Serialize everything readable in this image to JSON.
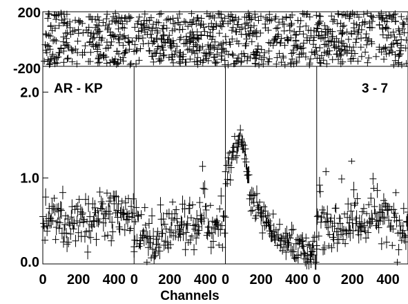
{
  "chart_data": {
    "type": "scatter",
    "marker": "plus",
    "color": "#000000",
    "xlabel": "Channels",
    "annotations": [
      "AR - KP",
      "3 - 7"
    ],
    "top_panel": {
      "y_ticks": [
        "200",
        "-200"
      ],
      "ylim": [
        -200,
        200
      ]
    },
    "main_panel": {
      "ylim": [
        0,
        2.3
      ],
      "y_ticks": [
        "2.0",
        "1.0",
        "0.0"
      ],
      "y_tick_values": [
        2.0,
        1.0,
        0.0
      ],
      "x_ticks": [
        "0",
        "200",
        "400",
        "0",
        "200",
        "400",
        "0",
        "200",
        "400",
        "0",
        "200",
        "400"
      ],
      "segments": [
        {
          "range": [
            0,
            512
          ],
          "profile": [
            [
              0,
              0.45
            ],
            [
              100,
              0.5
            ],
            [
              300,
              0.55
            ],
            [
              512,
              0.5
            ]
          ],
          "noise": 0.22
        },
        {
          "range": [
            0,
            512
          ],
          "profile": [
            [
              0,
              0.3
            ],
            [
              200,
              0.35
            ],
            [
              380,
              0.48
            ],
            [
              512,
              0.4
            ]
          ],
          "noise": 0.2
        },
        {
          "range": [
            0,
            512
          ],
          "profile": [
            [
              0,
              1.05
            ],
            [
              40,
              1.25
            ],
            [
              90,
              1.5
            ],
            [
              150,
              0.75
            ],
            [
              250,
              0.45
            ],
            [
              330,
              0.25
            ],
            [
              430,
              0.15
            ],
            [
              512,
              0.08
            ]
          ],
          "noise": 0.12
        },
        {
          "range": [
            0,
            512
          ],
          "profile": [
            [
              0,
              0.5
            ],
            [
              150,
              0.45
            ],
            [
              300,
              0.55
            ],
            [
              512,
              0.45
            ]
          ],
          "noise": 0.22
        }
      ]
    }
  }
}
